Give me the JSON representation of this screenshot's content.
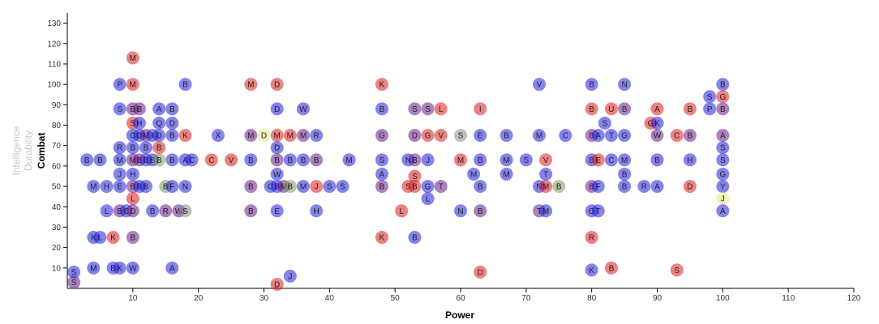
{
  "chart_data": {
    "type": "scatter",
    "xlabel": "Power",
    "ylabel": "Combat",
    "ylabel_inactive": [
      "Intelligence",
      "Durability"
    ],
    "xlim": [
      0,
      120
    ],
    "ylim": [
      0,
      135
    ],
    "x_ticks": [
      10,
      20,
      30,
      40,
      50,
      60,
      70,
      80,
      90,
      100,
      110,
      120
    ],
    "y_ticks": [
      10,
      20,
      30,
      40,
      50,
      60,
      70,
      80,
      90,
      100,
      110,
      120,
      130
    ],
    "grid": false,
    "colors": {
      "blue": "#1f1fe0",
      "red": "#dd1c1c",
      "purple": "#6a1a8a",
      "olive": "#7a9a5a",
      "yellow": "#e6e680",
      "gray": "#8a8a8a"
    },
    "points": [
      {
        "x": 1,
        "y": 3,
        "label": "S",
        "color": "purple"
      },
      {
        "x": 1,
        "y": 8,
        "label": "S",
        "color": "blue"
      },
      {
        "x": 4,
        "y": 10,
        "label": "M",
        "color": "blue"
      },
      {
        "x": 7,
        "y": 10,
        "label": "B",
        "color": "blue"
      },
      {
        "x": 8,
        "y": 10,
        "label": "K",
        "color": "blue"
      },
      {
        "x": 10,
        "y": 10,
        "label": "W",
        "color": "blue"
      },
      {
        "x": 16,
        "y": 10,
        "label": "A",
        "color": "blue"
      },
      {
        "x": 4,
        "y": 25,
        "label": "K",
        "color": "blue"
      },
      {
        "x": 5,
        "y": 25,
        "label": "L",
        "color": "blue"
      },
      {
        "x": 7,
        "y": 25,
        "label": "K",
        "color": "red"
      },
      {
        "x": 10,
        "y": 25,
        "label": "B",
        "color": "purple"
      },
      {
        "x": 10,
        "y": 113,
        "label": "M",
        "color": "red"
      },
      {
        "x": 8,
        "y": 100,
        "label": "P",
        "color": "blue"
      },
      {
        "x": 10,
        "y": 100,
        "label": "M",
        "color": "red"
      },
      {
        "x": 18,
        "y": 100,
        "label": "B",
        "color": "blue"
      },
      {
        "x": 28,
        "y": 100,
        "label": "M",
        "color": "red"
      },
      {
        "x": 32,
        "y": 100,
        "label": "D",
        "color": "red"
      },
      {
        "x": 48,
        "y": 100,
        "label": "K",
        "color": "red"
      },
      {
        "x": 72,
        "y": 100,
        "label": "V",
        "color": "blue"
      },
      {
        "x": 80,
        "y": 100,
        "label": "B",
        "color": "blue"
      },
      {
        "x": 85,
        "y": 100,
        "label": "N",
        "color": "blue"
      },
      {
        "x": 100,
        "y": 100,
        "label": "B",
        "color": "blue"
      },
      {
        "x": 8,
        "y": 88,
        "label": "S",
        "color": "blue"
      },
      {
        "x": 10,
        "y": 88,
        "label": "B",
        "color": "purple"
      },
      {
        "x": 11,
        "y": 88,
        "label": "B",
        "color": "purple"
      },
      {
        "x": 14,
        "y": 88,
        "label": "A",
        "color": "blue"
      },
      {
        "x": 16,
        "y": 88,
        "label": "B",
        "color": "blue"
      },
      {
        "x": 32,
        "y": 88,
        "label": "D",
        "color": "blue"
      },
      {
        "x": 36,
        "y": 88,
        "label": "W",
        "color": "blue"
      },
      {
        "x": 48,
        "y": 88,
        "label": "B",
        "color": "blue"
      },
      {
        "x": 53,
        "y": 88,
        "label": "S",
        "color": "purple"
      },
      {
        "x": 55,
        "y": 88,
        "label": "S",
        "color": "purple"
      },
      {
        "x": 57,
        "y": 88,
        "label": "L",
        "color": "red"
      },
      {
        "x": 63,
        "y": 88,
        "label": "I",
        "color": "red"
      },
      {
        "x": 80,
        "y": 88,
        "label": "B",
        "color": "red"
      },
      {
        "x": 83,
        "y": 88,
        "label": "U",
        "color": "red"
      },
      {
        "x": 85,
        "y": 88,
        "label": "B",
        "color": "purple"
      },
      {
        "x": 90,
        "y": 88,
        "label": "A",
        "color": "red"
      },
      {
        "x": 95,
        "y": 88,
        "label": "B",
        "color": "red"
      },
      {
        "x": 98,
        "y": 88,
        "label": "P",
        "color": "blue"
      },
      {
        "x": 100,
        "y": 88,
        "label": "B",
        "color": "purple"
      },
      {
        "x": 98,
        "y": 94,
        "label": "S",
        "color": "blue"
      },
      {
        "x": 100,
        "y": 94,
        "label": "G",
        "color": "red"
      },
      {
        "x": 10,
        "y": 81,
        "label": "S",
        "color": "red"
      },
      {
        "x": 11,
        "y": 81,
        "label": "H",
        "color": "blue"
      },
      {
        "x": 14,
        "y": 81,
        "label": "Q",
        "color": "blue"
      },
      {
        "x": 16,
        "y": 81,
        "label": "D",
        "color": "blue"
      },
      {
        "x": 82,
        "y": 81,
        "label": "S",
        "color": "blue"
      },
      {
        "x": 89,
        "y": 81,
        "label": "G",
        "color": "red"
      },
      {
        "x": 90,
        "y": 81,
        "label": "K",
        "color": "blue"
      },
      {
        "x": 10,
        "y": 75,
        "label": "C",
        "color": "blue"
      },
      {
        "x": 11,
        "y": 75,
        "label": "O",
        "color": "blue"
      },
      {
        "x": 12,
        "y": 75,
        "label": "M",
        "color": "purple"
      },
      {
        "x": 13,
        "y": 75,
        "label": "I",
        "color": "blue"
      },
      {
        "x": 14,
        "y": 75,
        "label": "D",
        "color": "blue"
      },
      {
        "x": 16,
        "y": 75,
        "label": "B",
        "color": "blue"
      },
      {
        "x": 18,
        "y": 75,
        "label": "K",
        "color": "red"
      },
      {
        "x": 23,
        "y": 75,
        "label": "X",
        "color": "blue"
      },
      {
        "x": 28,
        "y": 75,
        "label": "M",
        "color": "purple"
      },
      {
        "x": 30,
        "y": 75,
        "label": "D",
        "color": "yellow"
      },
      {
        "x": 32,
        "y": 75,
        "label": "M",
        "color": "red"
      },
      {
        "x": 34,
        "y": 75,
        "label": "M",
        "color": "red"
      },
      {
        "x": 36,
        "y": 75,
        "label": "M",
        "color": "purple"
      },
      {
        "x": 38,
        "y": 75,
        "label": "R",
        "color": "blue"
      },
      {
        "x": 48,
        "y": 75,
        "label": "G",
        "color": "purple"
      },
      {
        "x": 53,
        "y": 75,
        "label": "D",
        "color": "purple"
      },
      {
        "x": 55,
        "y": 75,
        "label": "G",
        "color": "red"
      },
      {
        "x": 57,
        "y": 75,
        "label": "V",
        "color": "red"
      },
      {
        "x": 60,
        "y": 75,
        "label": "S",
        "color": "gray"
      },
      {
        "x": 63,
        "y": 75,
        "label": "E",
        "color": "blue"
      },
      {
        "x": 67,
        "y": 75,
        "label": "B",
        "color": "blue"
      },
      {
        "x": 72,
        "y": 75,
        "label": "M",
        "color": "blue"
      },
      {
        "x": 76,
        "y": 75,
        "label": "C",
        "color": "blue"
      },
      {
        "x": 80,
        "y": 75,
        "label": "B",
        "color": "purple"
      },
      {
        "x": 81,
        "y": 75,
        "label": "A",
        "color": "blue"
      },
      {
        "x": 83,
        "y": 75,
        "label": "T",
        "color": "blue"
      },
      {
        "x": 85,
        "y": 75,
        "label": "G",
        "color": "blue"
      },
      {
        "x": 90,
        "y": 75,
        "label": "W",
        "color": "purple"
      },
      {
        "x": 93,
        "y": 75,
        "label": "C",
        "color": "red"
      },
      {
        "x": 95,
        "y": 75,
        "label": "B",
        "color": "purple"
      },
      {
        "x": 100,
        "y": 75,
        "label": "A",
        "color": "purple"
      },
      {
        "x": 8,
        "y": 69,
        "label": "R",
        "color": "blue"
      },
      {
        "x": 10,
        "y": 69,
        "label": "B",
        "color": "blue"
      },
      {
        "x": 12,
        "y": 69,
        "label": "B",
        "color": "blue"
      },
      {
        "x": 14,
        "y": 69,
        "label": "B",
        "color": "red"
      },
      {
        "x": 32,
        "y": 69,
        "label": "D",
        "color": "blue"
      },
      {
        "x": 100,
        "y": 69,
        "label": "S",
        "color": "blue"
      },
      {
        "x": 3,
        "y": 63,
        "label": "B",
        "color": "blue"
      },
      {
        "x": 5,
        "y": 63,
        "label": "B",
        "color": "blue"
      },
      {
        "x": 8,
        "y": 63,
        "label": "M",
        "color": "blue"
      },
      {
        "x": 10,
        "y": 63,
        "label": "M",
        "color": "purple"
      },
      {
        "x": 11,
        "y": 63,
        "label": "B",
        "color": "purple"
      },
      {
        "x": 12,
        "y": 63,
        "label": "B",
        "color": "blue"
      },
      {
        "x": 13,
        "y": 63,
        "label": "B",
        "color": "blue"
      },
      {
        "x": 14,
        "y": 63,
        "label": "B",
        "color": "olive"
      },
      {
        "x": 16,
        "y": 63,
        "label": "B",
        "color": "blue"
      },
      {
        "x": 18,
        "y": 63,
        "label": "A",
        "color": "blue"
      },
      {
        "x": 19,
        "y": 63,
        "label": "C",
        "color": "blue"
      },
      {
        "x": 22,
        "y": 63,
        "label": "C",
        "color": "red"
      },
      {
        "x": 25,
        "y": 63,
        "label": "V",
        "color": "red"
      },
      {
        "x": 28,
        "y": 63,
        "label": "B",
        "color": "blue"
      },
      {
        "x": 32,
        "y": 63,
        "label": "B",
        "color": "purple"
      },
      {
        "x": 34,
        "y": 63,
        "label": "B",
        "color": "blue"
      },
      {
        "x": 36,
        "y": 63,
        "label": "B",
        "color": "blue"
      },
      {
        "x": 38,
        "y": 63,
        "label": "B",
        "color": "purple"
      },
      {
        "x": 43,
        "y": 63,
        "label": "M",
        "color": "blue"
      },
      {
        "x": 48,
        "y": 63,
        "label": "S",
        "color": "blue"
      },
      {
        "x": 52,
        "y": 63,
        "label": "N",
        "color": "blue"
      },
      {
        "x": 53,
        "y": 63,
        "label": "B",
        "color": "purple"
      },
      {
        "x": 55,
        "y": 63,
        "label": "J",
        "color": "blue"
      },
      {
        "x": 60,
        "y": 63,
        "label": "M",
        "color": "red"
      },
      {
        "x": 63,
        "y": 63,
        "label": "B",
        "color": "blue"
      },
      {
        "x": 67,
        "y": 63,
        "label": "M",
        "color": "blue"
      },
      {
        "x": 70,
        "y": 63,
        "label": "S",
        "color": "blue"
      },
      {
        "x": 73,
        "y": 63,
        "label": "V",
        "color": "red"
      },
      {
        "x": 80,
        "y": 63,
        "label": "B",
        "color": "blue"
      },
      {
        "x": 81,
        "y": 63,
        "label": "E",
        "color": "red"
      },
      {
        "x": 83,
        "y": 63,
        "label": "C",
        "color": "blue"
      },
      {
        "x": 85,
        "y": 63,
        "label": "M",
        "color": "blue"
      },
      {
        "x": 90,
        "y": 63,
        "label": "B",
        "color": "blue"
      },
      {
        "x": 95,
        "y": 63,
        "label": "H",
        "color": "blue"
      },
      {
        "x": 100,
        "y": 63,
        "label": "S",
        "color": "blue"
      },
      {
        "x": 8,
        "y": 56,
        "label": "J",
        "color": "blue"
      },
      {
        "x": 10,
        "y": 56,
        "label": "H",
        "color": "blue"
      },
      {
        "x": 32,
        "y": 56,
        "label": "W",
        "color": "blue"
      },
      {
        "x": 48,
        "y": 56,
        "label": "A",
        "color": "blue"
      },
      {
        "x": 53,
        "y": 55,
        "label": "S",
        "color": "red"
      },
      {
        "x": 62,
        "y": 56,
        "label": "M",
        "color": "blue"
      },
      {
        "x": 67,
        "y": 56,
        "label": "M",
        "color": "blue"
      },
      {
        "x": 73,
        "y": 56,
        "label": "T",
        "color": "blue"
      },
      {
        "x": 85,
        "y": 56,
        "label": "B",
        "color": "blue"
      },
      {
        "x": 100,
        "y": 56,
        "label": "G",
        "color": "blue"
      },
      {
        "x": 4,
        "y": 50,
        "label": "M",
        "color": "blue"
      },
      {
        "x": 6,
        "y": 50,
        "label": "H",
        "color": "blue"
      },
      {
        "x": 8,
        "y": 50,
        "label": "E",
        "color": "blue"
      },
      {
        "x": 10,
        "y": 50,
        "label": "B",
        "color": "purple"
      },
      {
        "x": 11,
        "y": 50,
        "label": "B",
        "color": "blue"
      },
      {
        "x": 12,
        "y": 50,
        "label": "B",
        "color": "blue"
      },
      {
        "x": 15,
        "y": 50,
        "label": "B",
        "color": "olive"
      },
      {
        "x": 16,
        "y": 50,
        "label": "F",
        "color": "blue"
      },
      {
        "x": 18,
        "y": 50,
        "label": "N",
        "color": "blue"
      },
      {
        "x": 28,
        "y": 50,
        "label": "B",
        "color": "purple"
      },
      {
        "x": 31,
        "y": 50,
        "label": "C",
        "color": "blue"
      },
      {
        "x": 32,
        "y": 50,
        "label": "B",
        "color": "blue"
      },
      {
        "x": 33,
        "y": 50,
        "label": "M",
        "color": "purple"
      },
      {
        "x": 34,
        "y": 50,
        "label": "B",
        "color": "olive"
      },
      {
        "x": 36,
        "y": 50,
        "label": "M",
        "color": "blue"
      },
      {
        "x": 38,
        "y": 50,
        "label": "J",
        "color": "red"
      },
      {
        "x": 40,
        "y": 50,
        "label": "S",
        "color": "blue"
      },
      {
        "x": 42,
        "y": 50,
        "label": "S",
        "color": "blue"
      },
      {
        "x": 48,
        "y": 50,
        "label": "B",
        "color": "purple"
      },
      {
        "x": 52,
        "y": 50,
        "label": "S",
        "color": "red"
      },
      {
        "x": 53,
        "y": 50,
        "label": "B",
        "color": "red"
      },
      {
        "x": 55,
        "y": 50,
        "label": "G",
        "color": "blue"
      },
      {
        "x": 57,
        "y": 50,
        "label": "T",
        "color": "purple"
      },
      {
        "x": 63,
        "y": 50,
        "label": "B",
        "color": "blue"
      },
      {
        "x": 72,
        "y": 50,
        "label": "N",
        "color": "blue"
      },
      {
        "x": 73,
        "y": 50,
        "label": "M",
        "color": "red"
      },
      {
        "x": 75,
        "y": 50,
        "label": "B",
        "color": "olive"
      },
      {
        "x": 80,
        "y": 50,
        "label": "B",
        "color": "purple"
      },
      {
        "x": 81,
        "y": 50,
        "label": "F",
        "color": "blue"
      },
      {
        "x": 85,
        "y": 50,
        "label": "B",
        "color": "blue"
      },
      {
        "x": 88,
        "y": 50,
        "label": "R",
        "color": "blue"
      },
      {
        "x": 90,
        "y": 50,
        "label": "A",
        "color": "blue"
      },
      {
        "x": 95,
        "y": 50,
        "label": "D",
        "color": "red"
      },
      {
        "x": 100,
        "y": 50,
        "label": "Y",
        "color": "blue"
      },
      {
        "x": 10,
        "y": 44,
        "label": "L",
        "color": "red"
      },
      {
        "x": 55,
        "y": 44,
        "label": "L",
        "color": "blue"
      },
      {
        "x": 100,
        "y": 44,
        "label": "J",
        "color": "yellow"
      },
      {
        "x": 6,
        "y": 38,
        "label": "L",
        "color": "blue"
      },
      {
        "x": 8,
        "y": 38,
        "label": "B",
        "color": "purple"
      },
      {
        "x": 9,
        "y": 38,
        "label": "C",
        "color": "blue"
      },
      {
        "x": 10,
        "y": 38,
        "label": "D",
        "color": "purple"
      },
      {
        "x": 13,
        "y": 38,
        "label": "B",
        "color": "blue"
      },
      {
        "x": 15,
        "y": 38,
        "label": "R",
        "color": "purple"
      },
      {
        "x": 17,
        "y": 38,
        "label": "W",
        "color": "purple"
      },
      {
        "x": 18,
        "y": 38,
        "label": "S",
        "color": "gray"
      },
      {
        "x": 28,
        "y": 38,
        "label": "B",
        "color": "purple"
      },
      {
        "x": 32,
        "y": 38,
        "label": "E",
        "color": "blue"
      },
      {
        "x": 38,
        "y": 38,
        "label": "H",
        "color": "blue"
      },
      {
        "x": 51,
        "y": 38,
        "label": "L",
        "color": "red"
      },
      {
        "x": 60,
        "y": 38,
        "label": "N",
        "color": "blue"
      },
      {
        "x": 63,
        "y": 38,
        "label": "B",
        "color": "purple"
      },
      {
        "x": 72,
        "y": 38,
        "label": "T",
        "color": "purple"
      },
      {
        "x": 73,
        "y": 38,
        "label": "M",
        "color": "blue"
      },
      {
        "x": 80,
        "y": 38,
        "label": "G",
        "color": "blue"
      },
      {
        "x": 81,
        "y": 38,
        "label": "T",
        "color": "blue"
      },
      {
        "x": 100,
        "y": 38,
        "label": "A",
        "color": "blue"
      },
      {
        "x": 48,
        "y": 25,
        "label": "K",
        "color": "red"
      },
      {
        "x": 53,
        "y": 25,
        "label": "B",
        "color": "blue"
      },
      {
        "x": 80,
        "y": 25,
        "label": "R",
        "color": "red"
      },
      {
        "x": 34,
        "y": 6,
        "label": "J",
        "color": "blue"
      },
      {
        "x": 32,
        "y": 2,
        "label": "D",
        "color": "red"
      },
      {
        "x": 63,
        "y": 8,
        "label": "D",
        "color": "red"
      },
      {
        "x": 80,
        "y": 9,
        "label": "K",
        "color": "blue"
      },
      {
        "x": 83,
        "y": 10,
        "label": "B",
        "color": "red"
      },
      {
        "x": 93,
        "y": 9,
        "label": "S",
        "color": "red"
      }
    ]
  }
}
